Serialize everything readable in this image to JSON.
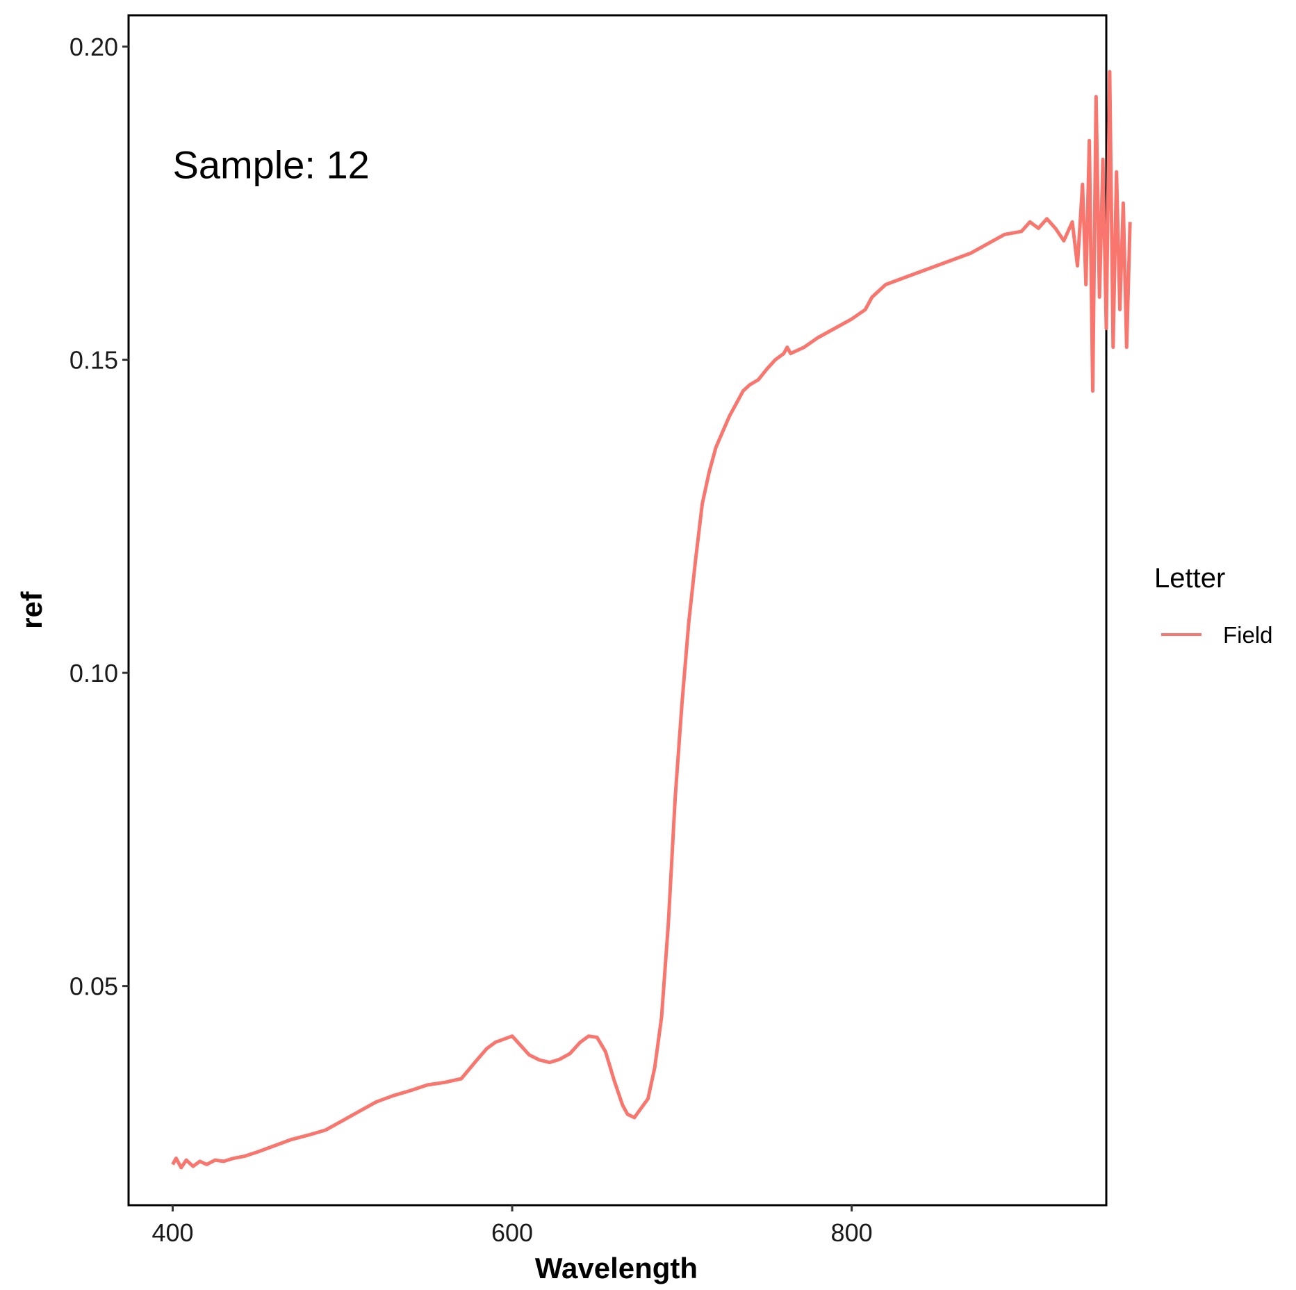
{
  "chart_data": {
    "type": "line",
    "title": "",
    "xlabel": "Wavelength",
    "ylabel": "ref",
    "xlim": [
      374,
      950
    ],
    "ylim": [
      0.015,
      0.205
    ],
    "xticks": [
      400,
      600,
      800
    ],
    "xtick_labels": [
      "400",
      "600",
      "800"
    ],
    "yticks": [
      0.05,
      0.1,
      0.15,
      0.2
    ],
    "ytick_labels": [
      "0.05",
      "0.10",
      "0.15",
      "0.20"
    ],
    "annotation": {
      "text": "Sample: 12",
      "x": 400,
      "y": 0.179
    },
    "grid": false,
    "legend": {
      "title": "Letter",
      "position": "right",
      "entries": [
        "Field"
      ]
    },
    "series": [
      {
        "name": "Field",
        "color": "#F8766D",
        "x": [
          400,
          402,
          405,
          408,
          412,
          416,
          420,
          425,
          430,
          436,
          442,
          450,
          460,
          470,
          480,
          490,
          500,
          510,
          520,
          530,
          540,
          550,
          560,
          570,
          578,
          585,
          590,
          595,
          600,
          605,
          610,
          616,
          622,
          628,
          634,
          640,
          645,
          650,
          655,
          660,
          665,
          668,
          672,
          676,
          680,
          684,
          688,
          692,
          696,
          700,
          704,
          708,
          712,
          716,
          720,
          724,
          728,
          732,
          736,
          740,
          745,
          750,
          755,
          760,
          762,
          764,
          768,
          772,
          780,
          790,
          800,
          808,
          812,
          816,
          820,
          830,
          840,
          850,
          860,
          870,
          880,
          890,
          900,
          905,
          910,
          915,
          920,
          925,
          930,
          933,
          936,
          938,
          940,
          942,
          944,
          946,
          948,
          950,
          952,
          954,
          956,
          958,
          960,
          962,
          964
        ],
        "values": [
          0.0215,
          0.0225,
          0.021,
          0.0222,
          0.0212,
          0.022,
          0.0215,
          0.0222,
          0.022,
          0.0225,
          0.0228,
          0.0235,
          0.0245,
          0.0255,
          0.0262,
          0.027,
          0.0285,
          0.03,
          0.0315,
          0.0325,
          0.0333,
          0.0342,
          0.0346,
          0.0352,
          0.0378,
          0.04,
          0.041,
          0.0415,
          0.042,
          0.0405,
          0.039,
          0.0382,
          0.0378,
          0.0383,
          0.0392,
          0.041,
          0.042,
          0.0418,
          0.0395,
          0.035,
          0.031,
          0.0295,
          0.029,
          0.0305,
          0.032,
          0.037,
          0.045,
          0.06,
          0.08,
          0.095,
          0.108,
          0.118,
          0.127,
          0.132,
          0.136,
          0.1385,
          0.141,
          0.143,
          0.145,
          0.146,
          0.1468,
          0.1485,
          0.15,
          0.151,
          0.152,
          0.151,
          0.1515,
          0.152,
          0.1535,
          0.155,
          0.1565,
          0.158,
          0.16,
          0.161,
          0.162,
          0.163,
          0.164,
          0.165,
          0.166,
          0.167,
          0.1685,
          0.17,
          0.1705,
          0.172,
          0.171,
          0.1725,
          0.171,
          0.169,
          0.172,
          0.165,
          0.178,
          0.162,
          0.185,
          0.145,
          0.192,
          0.16,
          0.182,
          0.155,
          0.196,
          0.152,
          0.18,
          0.158,
          0.175,
          0.152,
          0.172
        ]
      }
    ]
  }
}
